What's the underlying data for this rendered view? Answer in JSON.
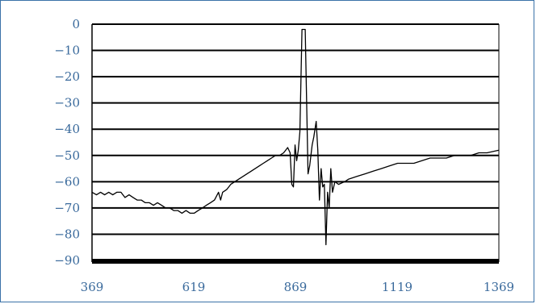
{
  "chart_data": {
    "type": "line",
    "title": "",
    "xlabel": "",
    "ylabel": "",
    "xlim": [
      369,
      1369
    ],
    "ylim": [
      -90,
      0
    ],
    "x_ticks": [
      "369",
      "619",
      "869",
      "1119",
      "1369"
    ],
    "y_ticks": [
      "0",
      "−10",
      "−20",
      "−30",
      "−40",
      "−50",
      "−60",
      "−70",
      "−80",
      "−90"
    ],
    "grid": "horizontal",
    "legend": "none",
    "line_color": "#000000",
    "tick_color": "#3a6a9c",
    "series": [
      {
        "points": [
          [
            369,
            -64
          ],
          [
            380,
            -65
          ],
          [
            390,
            -64
          ],
          [
            400,
            -65
          ],
          [
            410,
            -64
          ],
          [
            420,
            -65
          ],
          [
            430,
            -64
          ],
          [
            440,
            -64
          ],
          [
            450,
            -66
          ],
          [
            460,
            -65
          ],
          [
            470,
            -66
          ],
          [
            480,
            -67
          ],
          [
            490,
            -67
          ],
          [
            500,
            -68
          ],
          [
            510,
            -68
          ],
          [
            520,
            -69
          ],
          [
            530,
            -68
          ],
          [
            540,
            -69
          ],
          [
            550,
            -70
          ],
          [
            560,
            -70
          ],
          [
            570,
            -71
          ],
          [
            580,
            -71
          ],
          [
            590,
            -72
          ],
          [
            600,
            -71
          ],
          [
            610,
            -72
          ],
          [
            620,
            -72
          ],
          [
            630,
            -71
          ],
          [
            640,
            -70
          ],
          [
            650,
            -69
          ],
          [
            660,
            -68
          ],
          [
            670,
            -67
          ],
          [
            680,
            -64
          ],
          [
            685,
            -67
          ],
          [
            690,
            -64
          ],
          [
            700,
            -63
          ],
          [
            710,
            -61
          ],
          [
            720,
            -60
          ],
          [
            730,
            -59
          ],
          [
            740,
            -58
          ],
          [
            750,
            -57
          ],
          [
            760,
            -56
          ],
          [
            770,
            -55
          ],
          [
            780,
            -54
          ],
          [
            790,
            -53
          ],
          [
            800,
            -52
          ],
          [
            810,
            -51
          ],
          [
            820,
            -50
          ],
          [
            830,
            -50
          ],
          [
            840,
            -49
          ],
          [
            850,
            -47
          ],
          [
            856,
            -49
          ],
          [
            860,
            -61
          ],
          [
            864,
            -62
          ],
          [
            868,
            -46
          ],
          [
            872,
            -52
          ],
          [
            876,
            -48
          ],
          [
            880,
            -41
          ],
          [
            885,
            -2
          ],
          [
            893,
            -2
          ],
          [
            900,
            -57
          ],
          [
            904,
            -54
          ],
          [
            910,
            -46
          ],
          [
            914,
            -43
          ],
          [
            920,
            -37
          ],
          [
            924,
            -48
          ],
          [
            928,
            -67
          ],
          [
            932,
            -55
          ],
          [
            936,
            -62
          ],
          [
            940,
            -61
          ],
          [
            944,
            -84
          ],
          [
            948,
            -64
          ],
          [
            952,
            -70
          ],
          [
            956,
            -55
          ],
          [
            960,
            -64
          ],
          [
            966,
            -60
          ],
          [
            975,
            -61
          ],
          [
            990,
            -60
          ],
          [
            1000,
            -59
          ],
          [
            1020,
            -58
          ],
          [
            1040,
            -57
          ],
          [
            1060,
            -56
          ],
          [
            1080,
            -55
          ],
          [
            1100,
            -54
          ],
          [
            1120,
            -53
          ],
          [
            1140,
            -53
          ],
          [
            1160,
            -53
          ],
          [
            1180,
            -52
          ],
          [
            1200,
            -51
          ],
          [
            1220,
            -51
          ],
          [
            1240,
            -51
          ],
          [
            1260,
            -50
          ],
          [
            1280,
            -50
          ],
          [
            1300,
            -50
          ],
          [
            1320,
            -49
          ],
          [
            1340,
            -49
          ],
          [
            1369,
            -48
          ]
        ]
      }
    ]
  }
}
